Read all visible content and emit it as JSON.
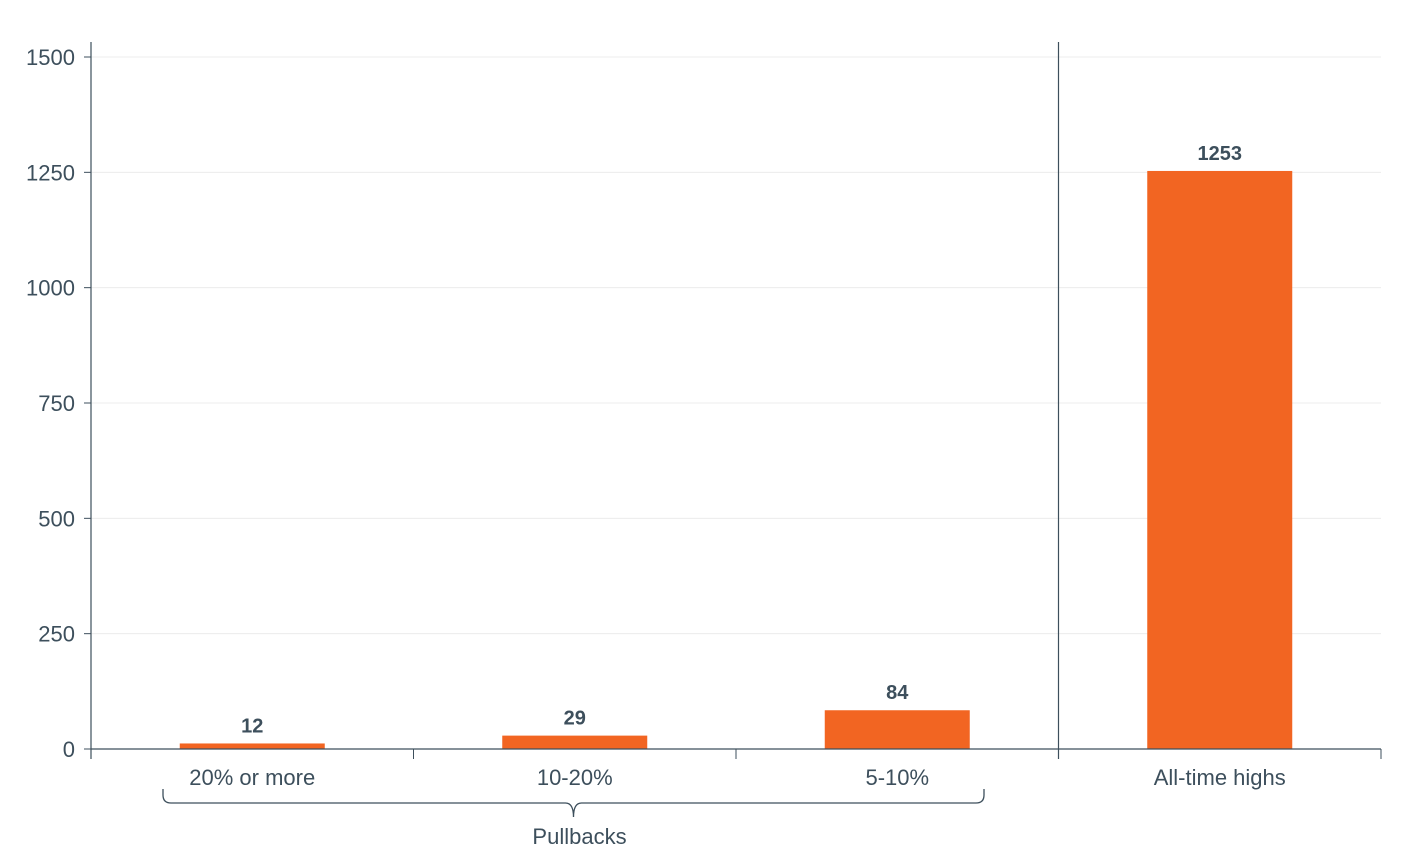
{
  "chart_data": {
    "type": "bar",
    "categories": [
      "20% or more",
      "10-20%",
      "5-10%",
      "All-time highs"
    ],
    "values": [
      12,
      29,
      84,
      1253
    ],
    "data_labels": [
      "12",
      "29",
      "84",
      "1253"
    ],
    "title": "",
    "xlabel": "",
    "ylabel": "",
    "ylim": [
      0,
      1500
    ],
    "yticks": [
      0,
      250,
      500,
      750,
      1000,
      1250,
      1500
    ],
    "ytick_labels": [
      "0",
      "250",
      "500",
      "750",
      "1000",
      "1250",
      "1500"
    ],
    "grid": true,
    "group": {
      "label": "Pullbacks",
      "categories": [
        "20% or more",
        "10-20%",
        "5-10%"
      ]
    },
    "bar_color": "#f26522",
    "axis_color": "#3d4f5c",
    "grid_color": "#ececec"
  }
}
